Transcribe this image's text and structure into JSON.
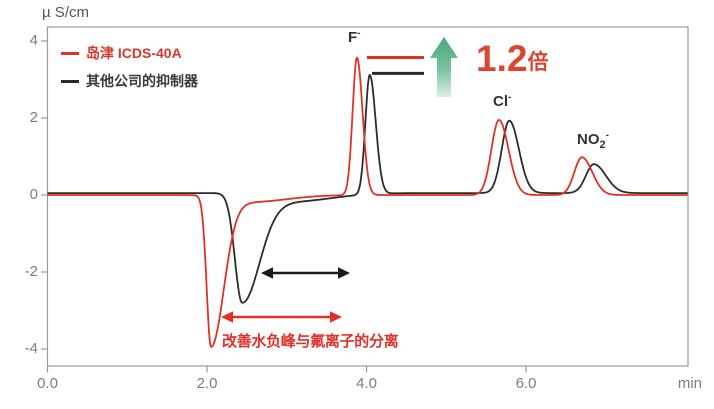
{
  "figure": {
    "y_axis_unit": "µ S/cm",
    "x_axis_unit": "min"
  },
  "legend": {
    "items": [
      {
        "label": "岛津 ICDS-40A",
        "color": "#e03127"
      },
      {
        "label": "其他公司的抑制器",
        "color": "#2b2b2b"
      }
    ]
  },
  "annotations": {
    "ratio": {
      "value": "1.2",
      "unit": "倍",
      "color": "#d8472e"
    },
    "separation_note": "改善水负峰与氟离子的分离",
    "peak_labels": [
      {
        "base": "F",
        "sub": "",
        "sup": "-",
        "x_min": 3.88
      },
      {
        "base": "Cl",
        "sub": "",
        "sup": "-",
        "x_min": 5.66
      },
      {
        "base": "NO",
        "sub": "2",
        "sup": "-",
        "x_min": 6.7
      }
    ]
  },
  "chart_data": {
    "type": "line",
    "title": "",
    "xlabel": "min",
    "ylabel": "µ S/cm",
    "x_range": [
      0,
      8.03
    ],
    "y_range": [
      -4.4,
      4.4
    ],
    "x_ticks": [
      "0.0",
      "2.0",
      "4.0",
      "6.0"
    ],
    "y_ticks": [
      "4",
      "2",
      "0",
      "-2",
      "-4"
    ],
    "grid": false,
    "legend_position": "top-left",
    "series": [
      {
        "name": "其他公司的抑制器",
        "color": "#2b2b2b",
        "baseline": 0.05,
        "peaks": [
          {
            "label": "water-dip",
            "center_min": 2.44,
            "height": -2.82,
            "sigma_left": 0.09,
            "sigma_right": 0.22
          },
          {
            "label": "water-dip-tail",
            "center_min": 3.05,
            "height": -0.22,
            "sigma_left": 0.3,
            "sigma_right": 0.5
          },
          {
            "label": "F-",
            "center_min": 4.04,
            "height": 3.1,
            "sigma_left": 0.055,
            "sigma_right": 0.075
          },
          {
            "label": "Cl-",
            "center_min": 5.79,
            "height": 1.88,
            "sigma_left": 0.095,
            "sigma_right": 0.12
          },
          {
            "label": "NO2-",
            "center_min": 6.85,
            "height": 0.75,
            "sigma_left": 0.1,
            "sigma_right": 0.15
          }
        ]
      },
      {
        "name": "岛津 ICDS-40A",
        "color": "#e03127",
        "baseline": 0,
        "peaks": [
          {
            "label": "water-dip",
            "center_min": 2.05,
            "height": -3.92,
            "sigma_left": 0.055,
            "sigma_right": 0.16
          },
          {
            "label": "water-dip-tail",
            "center_min": 2.55,
            "height": -0.18,
            "sigma_left": 0.25,
            "sigma_right": 0.45
          },
          {
            "label": "F-",
            "center_min": 3.88,
            "height": 3.57,
            "sigma_left": 0.055,
            "sigma_right": 0.07
          },
          {
            "label": "Cl-",
            "center_min": 5.66,
            "height": 1.95,
            "sigma_left": 0.095,
            "sigma_right": 0.12
          },
          {
            "label": "NO2-",
            "center_min": 6.7,
            "height": 0.98,
            "sigma_left": 0.095,
            "sigma_right": 0.13
          }
        ]
      }
    ],
    "markers": {
      "red_f_peak_level": 3.57,
      "black_f_peak_level": 3.16
    }
  }
}
